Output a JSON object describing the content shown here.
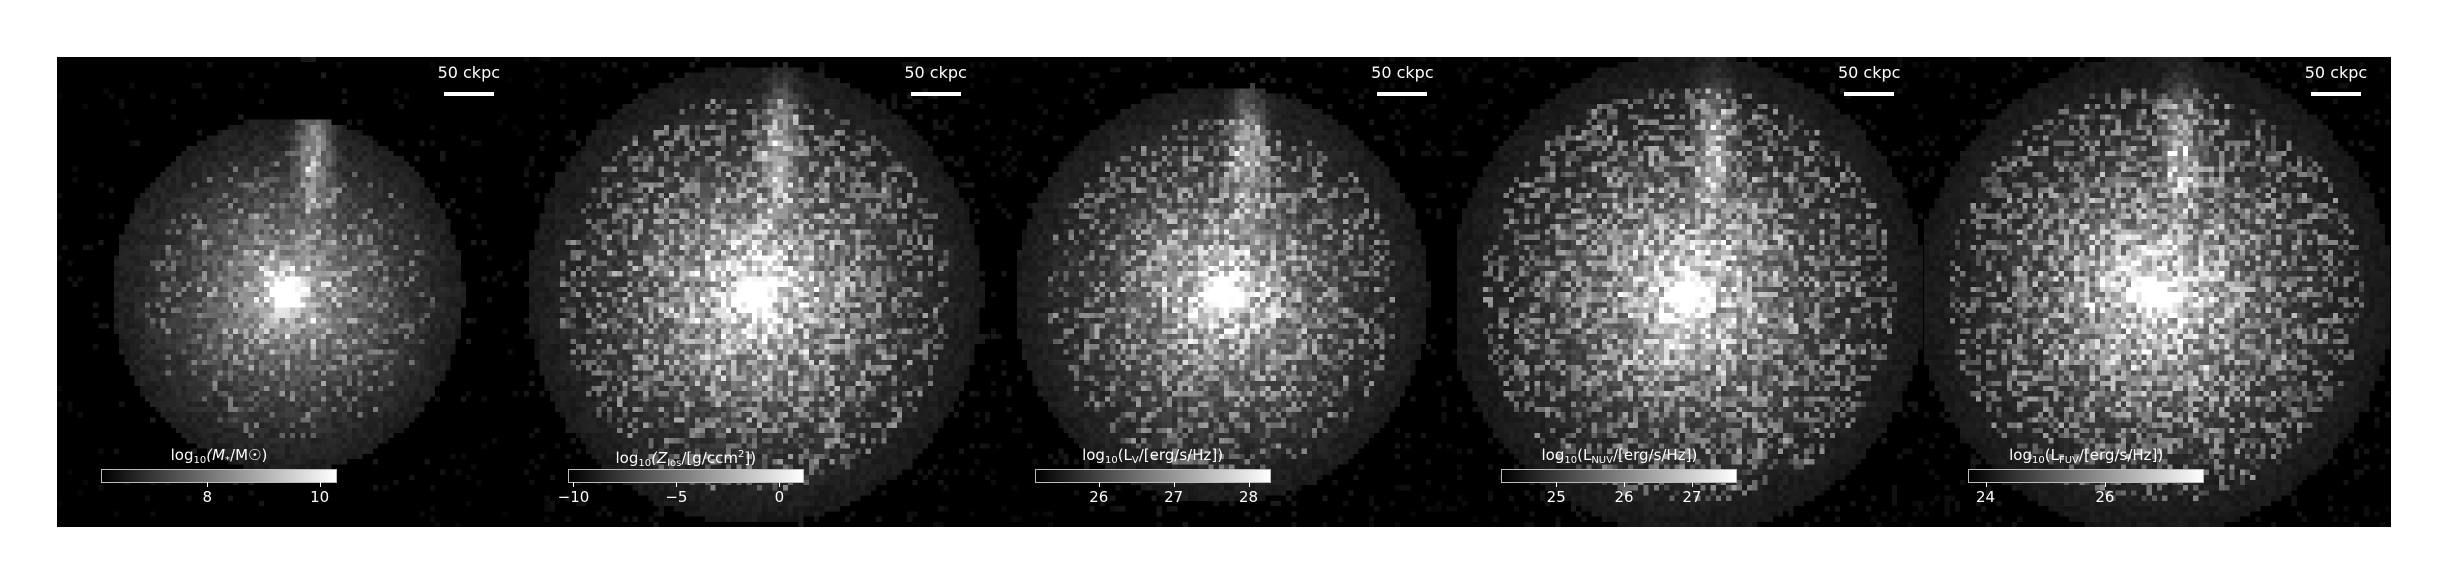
{
  "figure": {
    "panels": [
      {
        "key": "stellar-mass",
        "scalebar_label": "50 ckpc",
        "colorbar_label": "log10(M*/M☉)",
        "colorbar_label_parts": {
          "pre": "log",
          "sub1": "10",
          "mid": "(M",
          "sub2": "*",
          "post": "/M☉)",
          "sup": ""
        },
        "ticks": [
          {
            "label": "8",
            "fraction": 0.45
          },
          {
            "label": "10",
            "fraction": 0.93
          }
        ],
        "image": {
          "core_brightness": 1.0,
          "halo_extent": 0.55,
          "noise_density": 0.18,
          "plume": true
        }
      },
      {
        "key": "metals",
        "scalebar_label": "50 ckpc",
        "colorbar_label": "log10(Zlos/[g/ccm²])",
        "colorbar_label_parts": {
          "pre": "log",
          "sub1": "10",
          "mid": "(Z",
          "sub2": "los",
          "post": "/[g/ccm",
          "sup": "2",
          "tail": "])"
        },
        "ticks": [
          {
            "label": "−10",
            "fraction": 0.02
          },
          {
            "label": "−5",
            "fraction": 0.46
          },
          {
            "label": "0",
            "fraction": 0.9
          }
        ],
        "image": {
          "core_brightness": 1.0,
          "halo_extent": 0.8,
          "noise_density": 0.45,
          "plume": true
        }
      },
      {
        "key": "lum-v",
        "scalebar_label": "50 ckpc",
        "colorbar_label": "log10(LV/[erg/s/Hz])",
        "colorbar_label_parts": {
          "pre": "log",
          "sub1": "10",
          "mid": "(L",
          "sub2": "V",
          "post": "/[erg/s/Hz])",
          "sup": ""
        },
        "ticks": [
          {
            "label": "26",
            "fraction": 0.27
          },
          {
            "label": "27",
            "fraction": 0.59
          },
          {
            "label": "28",
            "fraction": 0.91
          }
        ],
        "image": {
          "core_brightness": 0.95,
          "halo_extent": 0.7,
          "noise_density": 0.4,
          "plume": true
        }
      },
      {
        "key": "lum-nuv",
        "scalebar_label": "50 ckpc",
        "colorbar_label": "log10(LNUV/[erg/s/Hz])",
        "colorbar_label_parts": {
          "pre": "log",
          "sub1": "10",
          "mid": "(L",
          "sub2": "NUV",
          "post": "/[erg/s/Hz])",
          "sup": ""
        },
        "ticks": [
          {
            "label": "25",
            "fraction": 0.23
          },
          {
            "label": "26",
            "fraction": 0.52
          },
          {
            "label": "27",
            "fraction": 0.81
          }
        ],
        "image": {
          "core_brightness": 0.85,
          "halo_extent": 0.85,
          "noise_density": 0.5,
          "plume": true
        }
      },
      {
        "key": "lum-fuv",
        "scalebar_label": "50 ckpc",
        "colorbar_label": "log10(LFUV/[erg/s/Hz])",
        "colorbar_label_parts": {
          "pre": "log",
          "sub1": "10",
          "mid": "(L",
          "sub2": "FUV",
          "post": "/[erg/s/Hz])",
          "sup": ""
        },
        "ticks": [
          {
            "label": "24",
            "fraction": 0.07
          },
          {
            "label": "26",
            "fraction": 0.58
          }
        ],
        "image": {
          "core_brightness": 0.85,
          "halo_extent": 0.85,
          "noise_density": 0.5,
          "plume": true
        }
      }
    ]
  },
  "colors": {
    "background": "#000000",
    "foreground": "#ffffff",
    "colormap": "greyscale"
  }
}
